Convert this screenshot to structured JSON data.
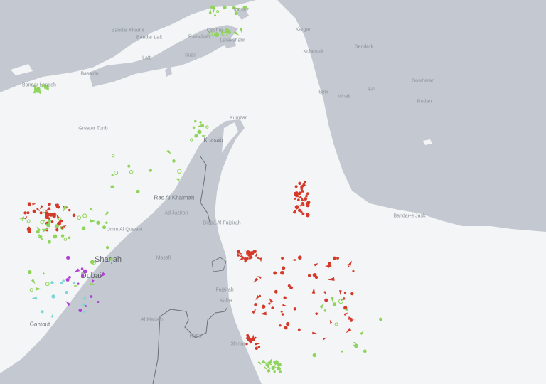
{
  "map": {
    "colors": {
      "land": "#c4c9d1",
      "sea": "#f4f5f6",
      "border": "#6b6f75",
      "tanker": "#d43a2a",
      "cargo": "#8fd45a",
      "tug_special": "#7fd6d6",
      "passenger": "#b040d6"
    },
    "labels": {
      "hormuz": "Hormuz",
      "qeshm": "Qeshm",
      "laft": "Laft",
      "bandar_khamir": "Bandar Khamir",
      "bandar_laft": "Bandar Laft",
      "ramchah": "Ramchah",
      "suza": "Suza",
      "basaidu": "Basaidu",
      "bandar_lengeh": "Bandar Lengeh",
      "larak": "Larakshahr",
      "greater_tunb": "Greater Tunb",
      "khasab": "Khasab",
      "kumzar": "Kumzar",
      "ras_al_khaimah": "Ras Al Khaimah",
      "al_jazirah": "Ad Jazirah",
      "umm_al_quwain": "Umm Al Quwain",
      "sharjah": "Sharjah",
      "dubai": "Dubai",
      "ghantout": "Gantout",
      "fujairah": "Fujairah",
      "kalba": "Kalba",
      "shinas": "Shinas",
      "al_madam": "Al Madam",
      "hatta": "Hatta",
      "masafi": "Masafi",
      "dibba": "Dibba Al Fujairah",
      "kargan": "Kargan",
      "kuhestak": "Kuhestak",
      "sirik": "Sirik",
      "minab": "Minab",
      "senderk": "Senderk",
      "bandar_jask": "Bandar-e Jask",
      "gowharan": "Gowharan",
      "fin": "Fin",
      "rudan": "Rudan"
    }
  }
}
